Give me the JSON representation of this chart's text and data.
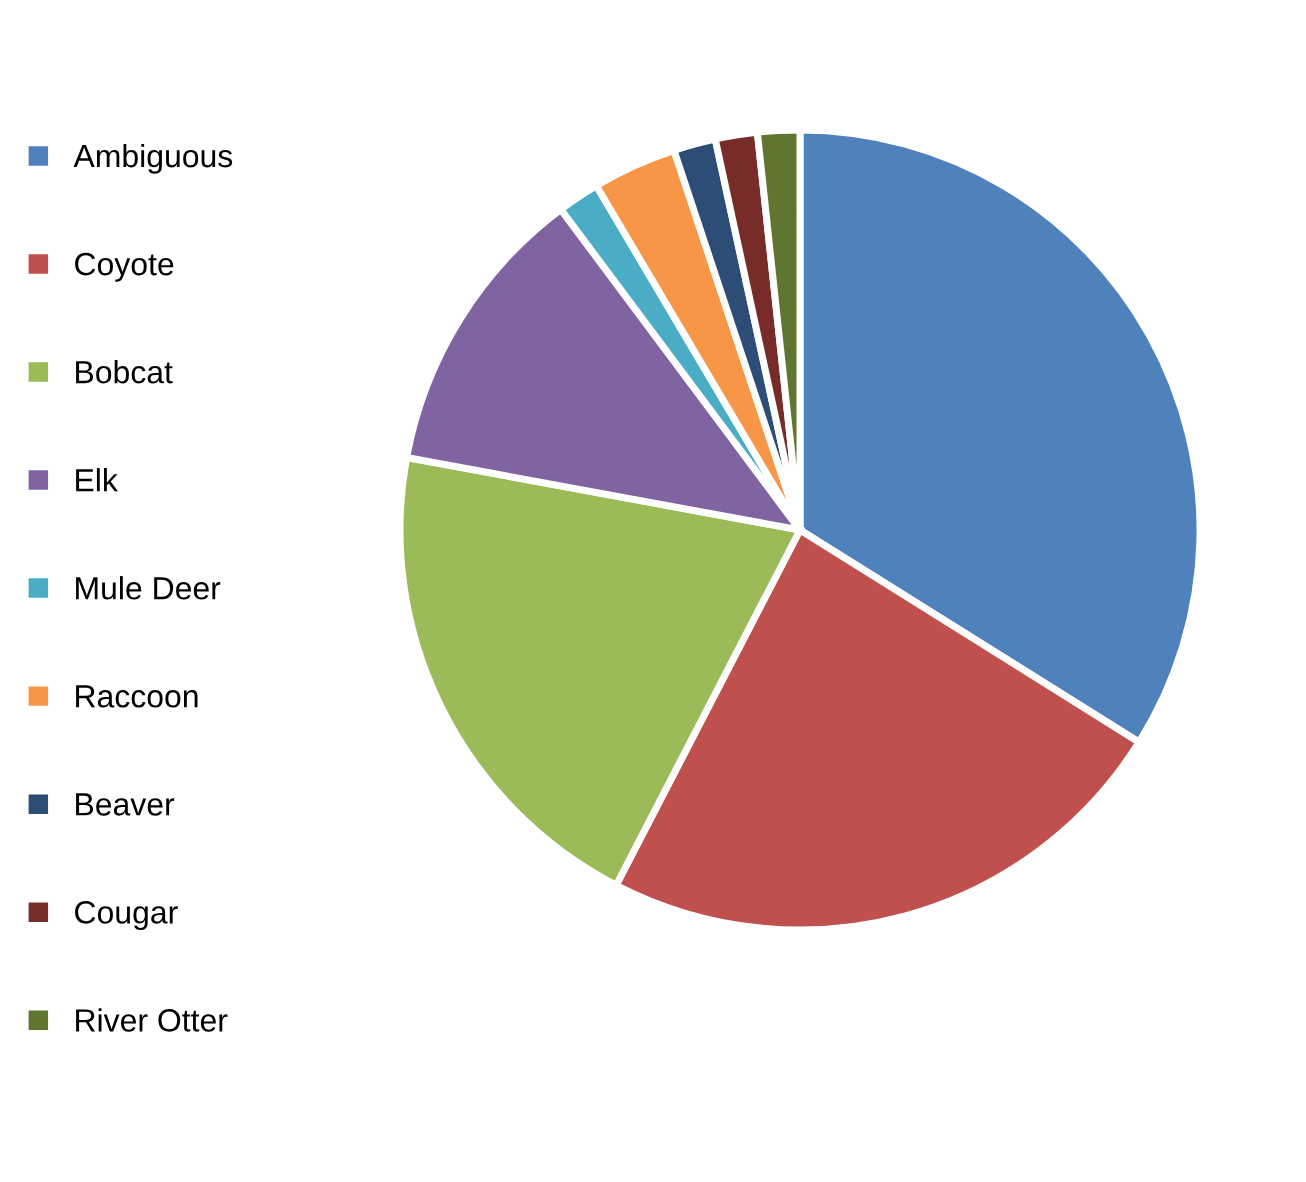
{
  "chart_data": {
    "type": "pie",
    "categories": [
      "Ambiguous",
      "Coyote",
      "Bobcat",
      "Elk",
      "Mule Deer",
      "Raccoon",
      "Beaver",
      "Cougar",
      "River Otter"
    ],
    "values": [
      33.9,
      23.7,
      20.3,
      11.9,
      1.7,
      3.4,
      1.7,
      1.7,
      1.7
    ],
    "colors": [
      "#4f81bd",
      "#c0504d",
      "#9bbb59",
      "#8064a2",
      "#4bacc6",
      "#f79646",
      "#2c4d75",
      "#772c2a",
      "#5f7530"
    ],
    "legend": "left"
  }
}
